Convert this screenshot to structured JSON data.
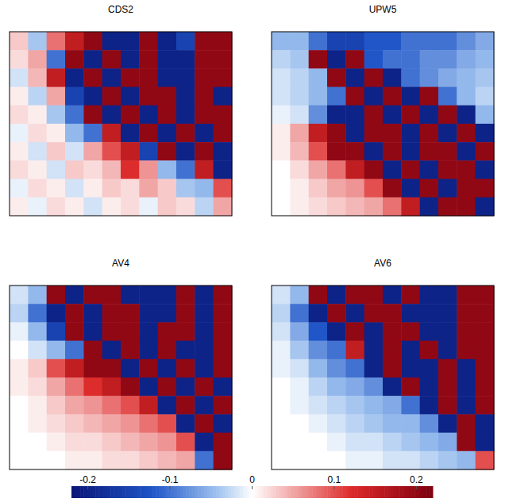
{
  "chart_data": {
    "type": "heatmap",
    "panels": [
      {
        "title": "CDS2",
        "cells": [
          [
            0.03,
            -0.04,
            0.08,
            0.15,
            0.2,
            -0.2,
            -0.2,
            0.2,
            -0.2,
            -0.15,
            0.2,
            0.2
          ],
          [
            0.02,
            0.05,
            -0.1,
            0.2,
            -0.2,
            0.2,
            -0.2,
            0.2,
            -0.2,
            -0.2,
            0.2,
            0.2
          ],
          [
            -0.02,
            0.04,
            0.15,
            -0.2,
            0.2,
            -0.2,
            0.2,
            0.2,
            -0.2,
            -0.2,
            0.2,
            0.2
          ],
          [
            0.01,
            -0.03,
            0.05,
            -0.15,
            -0.2,
            0.2,
            -0.2,
            0.2,
            0.2,
            -0.2,
            0.2,
            -0.2
          ],
          [
            0.02,
            0.01,
            -0.04,
            -0.1,
            0.2,
            -0.2,
            0.2,
            -0.2,
            0.2,
            -0.2,
            0.2,
            0.2
          ],
          [
            -0.01,
            0.02,
            0.01,
            -0.05,
            -0.1,
            0.15,
            -0.2,
            0.2,
            -0.2,
            0.2,
            -0.2,
            0.2
          ],
          [
            0.01,
            -0.02,
            0.03,
            -0.02,
            0.05,
            0.1,
            0.15,
            -0.15,
            0.2,
            -0.2,
            0.2,
            -0.2
          ],
          [
            0.02,
            0.01,
            -0.02,
            0.03,
            0.02,
            0.04,
            0.12,
            0.06,
            -0.05,
            -0.1,
            0.15,
            -0.2
          ],
          [
            -0.01,
            0.02,
            0.01,
            -0.02,
            0.01,
            0.03,
            0.02,
            0.05,
            0.03,
            -0.04,
            -0.05,
            0.1
          ],
          [
            0.01,
            -0.01,
            0.02,
            0.01,
            -0.02,
            0.01,
            0.02,
            -0.01,
            0.03,
            0.02,
            -0.03,
            0.05
          ]
        ]
      },
      {
        "title": "UPW5",
        "cells": [
          [
            -0.05,
            -0.05,
            -0.1,
            -0.15,
            -0.15,
            -0.12,
            -0.12,
            -0.1,
            -0.1,
            -0.1,
            -0.08,
            -0.06
          ],
          [
            -0.03,
            -0.04,
            0.2,
            -0.2,
            0.2,
            -0.12,
            -0.1,
            -0.1,
            -0.08,
            -0.08,
            -0.06,
            -0.05
          ],
          [
            -0.02,
            -0.03,
            -0.05,
            0.2,
            -0.2,
            0.2,
            -0.2,
            -0.1,
            -0.08,
            -0.06,
            -0.05,
            -0.04
          ],
          [
            -0.02,
            -0.03,
            -0.05,
            -0.1,
            0.2,
            -0.2,
            0.2,
            -0.2,
            0.2,
            -0.1,
            -0.05,
            -0.03
          ],
          [
            -0.01,
            -0.02,
            -0.08,
            -0.2,
            -0.2,
            0.2,
            -0.2,
            0.2,
            -0.2,
            0.2,
            -0.2,
            -0.05
          ],
          [
            0.01,
            0.05,
            0.15,
            0.2,
            -0.2,
            0.2,
            0.2,
            -0.2,
            0.2,
            -0.2,
            0.2,
            -0.2
          ],
          [
            0.01,
            0.04,
            0.1,
            0.2,
            0.2,
            -0.2,
            0.2,
            -0.2,
            0.2,
            0.2,
            -0.2,
            0.2
          ],
          [
            0,
            0.02,
            0.05,
            0.08,
            0.15,
            0.2,
            -0.2,
            0.2,
            -0.2,
            0.2,
            0.2,
            -0.2
          ],
          [
            0,
            0.01,
            0.03,
            0.05,
            0.06,
            0.1,
            0.2,
            -0.2,
            0.2,
            -0.2,
            0.2,
            0.2
          ],
          [
            0,
            0.01,
            0.02,
            0.03,
            0.04,
            0.05,
            0.08,
            0.15,
            -0.2,
            0.2,
            0.2,
            -0.2
          ]
        ]
      },
      {
        "title": "AV4",
        "cells": [
          [
            -0.02,
            -0.05,
            0.2,
            -0.2,
            0.2,
            0.2,
            -0.2,
            -0.2,
            -0.2,
            0.2,
            -0.2,
            0.2
          ],
          [
            -0.03,
            -0.1,
            -0.2,
            0.2,
            -0.2,
            0.2,
            0.2,
            -0.2,
            -0.2,
            0.2,
            -0.2,
            0.2
          ],
          [
            -0.01,
            -0.05,
            -0.15,
            0.2,
            -0.2,
            0.2,
            0.2,
            -0.2,
            0.2,
            0.2,
            -0.2,
            0.2
          ],
          [
            0,
            -0.02,
            -0.05,
            -0.1,
            0.2,
            -0.2,
            0.2,
            -0.2,
            0.2,
            -0.2,
            -0.2,
            0.2
          ],
          [
            0.01,
            0.03,
            0.1,
            0.15,
            0.2,
            0.2,
            -0.2,
            0.2,
            -0.2,
            0.2,
            -0.2,
            0.2
          ],
          [
            0.01,
            0.02,
            0.05,
            0.08,
            0.12,
            0.15,
            0.2,
            -0.2,
            0.2,
            -0.2,
            0.2,
            -0.2
          ],
          [
            0,
            0.01,
            0.03,
            0.05,
            0.06,
            0.08,
            0.1,
            0.15,
            -0.2,
            0.2,
            -0.2,
            0.2
          ],
          [
            0,
            0.01,
            0.02,
            0.03,
            0.04,
            0.05,
            0.06,
            0.08,
            0.1,
            -0.2,
            0.2,
            -0.2
          ],
          [
            0,
            0,
            0.01,
            0.02,
            0.02,
            0.03,
            0.04,
            0.05,
            0.06,
            0.1,
            -0.2,
            0.2
          ],
          [
            0,
            0,
            0,
            0.01,
            0.01,
            0.02,
            0.02,
            0.03,
            0.04,
            0.05,
            -0.1,
            0.2
          ]
        ]
      },
      {
        "title": "AV6",
        "cells": [
          [
            -0.02,
            -0.05,
            0.2,
            -0.2,
            0.2,
            0.2,
            -0.2,
            0.2,
            -0.2,
            -0.2,
            0.2,
            0.2
          ],
          [
            -0.03,
            -0.1,
            -0.2,
            0.2,
            -0.2,
            0.2,
            0.2,
            -0.2,
            -0.2,
            -0.2,
            0.2,
            0.2
          ],
          [
            -0.02,
            -0.06,
            -0.12,
            -0.2,
            0.2,
            -0.2,
            0.2,
            0.2,
            -0.2,
            -0.2,
            0.2,
            0.2
          ],
          [
            -0.01,
            -0.04,
            -0.08,
            -0.1,
            0.15,
            -0.2,
            0.2,
            -0.2,
            0.2,
            -0.2,
            0.2,
            0.2
          ],
          [
            -0.01,
            -0.02,
            -0.05,
            -0.08,
            -0.1,
            -0.2,
            0.2,
            -0.2,
            -0.2,
            0.2,
            -0.2,
            0.2
          ],
          [
            0,
            -0.01,
            -0.03,
            -0.05,
            -0.06,
            -0.08,
            -0.2,
            0.2,
            -0.2,
            0.2,
            -0.2,
            0.2
          ],
          [
            0,
            -0.01,
            -0.02,
            -0.03,
            -0.04,
            -0.05,
            -0.06,
            -0.1,
            -0.2,
            0.2,
            -0.2,
            0.2
          ],
          [
            0,
            0,
            -0.01,
            -0.02,
            -0.03,
            -0.04,
            -0.05,
            -0.05,
            -0.08,
            -0.2,
            0.2,
            -0.2
          ],
          [
            0,
            0,
            0,
            -0.01,
            -0.02,
            -0.02,
            -0.03,
            -0.04,
            -0.05,
            -0.06,
            0.2,
            -0.2
          ],
          [
            0,
            0,
            0,
            0,
            -0.01,
            -0.01,
            -0.02,
            -0.02,
            -0.03,
            -0.04,
            -0.05,
            0.1
          ]
        ]
      }
    ],
    "colorbar": {
      "range": [
        -0.22,
        0.22
      ],
      "ticks": [
        -0.2,
        -0.1,
        0,
        0.1,
        0.2
      ]
    }
  }
}
